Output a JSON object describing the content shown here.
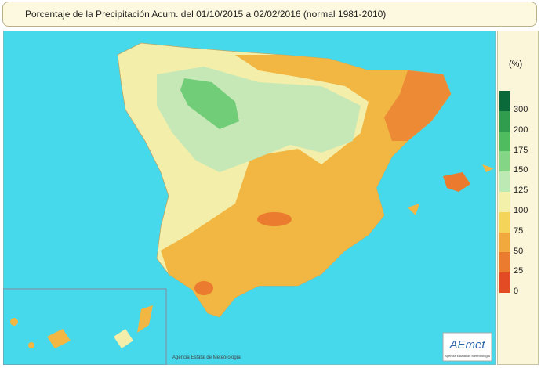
{
  "header": {
    "title": "Porcentaje de la Precipitación Acum. del 01/10/2015 a  02/02/2016  (normal 1981-2010)"
  },
  "legend": {
    "unit": "(%)",
    "items": [
      {
        "label": "300",
        "color": "#0b6a3a"
      },
      {
        "label": "200",
        "color": "#2f9d4d"
      },
      {
        "label": "175",
        "color": "#4fbd5f"
      },
      {
        "label": "150",
        "color": "#84d585"
      },
      {
        "label": "125",
        "color": "#bce9b4"
      },
      {
        "label": "100",
        "color": "#f3f0aa"
      },
      {
        "label": "75",
        "color": "#f5d45a"
      },
      {
        "label": "50",
        "color": "#f1a83c"
      },
      {
        "label": "25",
        "color": "#eb7b2e"
      },
      {
        "label": "0",
        "color": "#e24b24"
      }
    ]
  },
  "credit": "Agencia Estatal de Meteorología",
  "logo": {
    "name": "AEmet",
    "caption": "Agencia Estatal de Meteorología"
  }
}
